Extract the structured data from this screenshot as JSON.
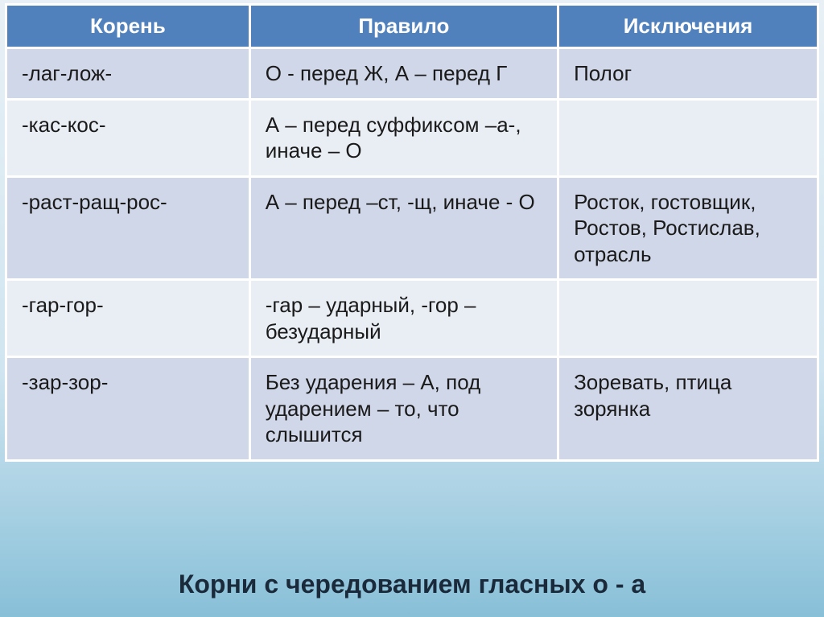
{
  "table": {
    "headers": [
      "Корень",
      "Правило",
      "Исключения"
    ],
    "rows": [
      {
        "root": "-лаг-лож-",
        "rule": "О - перед Ж, А – перед Г",
        "exc": "Полог"
      },
      {
        "root": "-кас-кос-",
        "rule": "А – перед суффиксом –а-, иначе – О",
        "exc": ""
      },
      {
        "root": "-раст-ращ-рос-",
        "rule": "А – перед –ст, -щ, иначе - О",
        "exc": "Росток, гостовщик, Ростов, Ростислав, отрасль"
      },
      {
        "root": "-гар-гор-",
        "rule": "-гар – ударный, -гор – безударный",
        "exc": ""
      },
      {
        "root": "-зар-зор-",
        "rule": "Без ударения – А, под ударением – то, что слышится",
        "exc": "Зоревать, птица зорянка"
      }
    ]
  },
  "title": "Корни с чередованием гласных о - а"
}
